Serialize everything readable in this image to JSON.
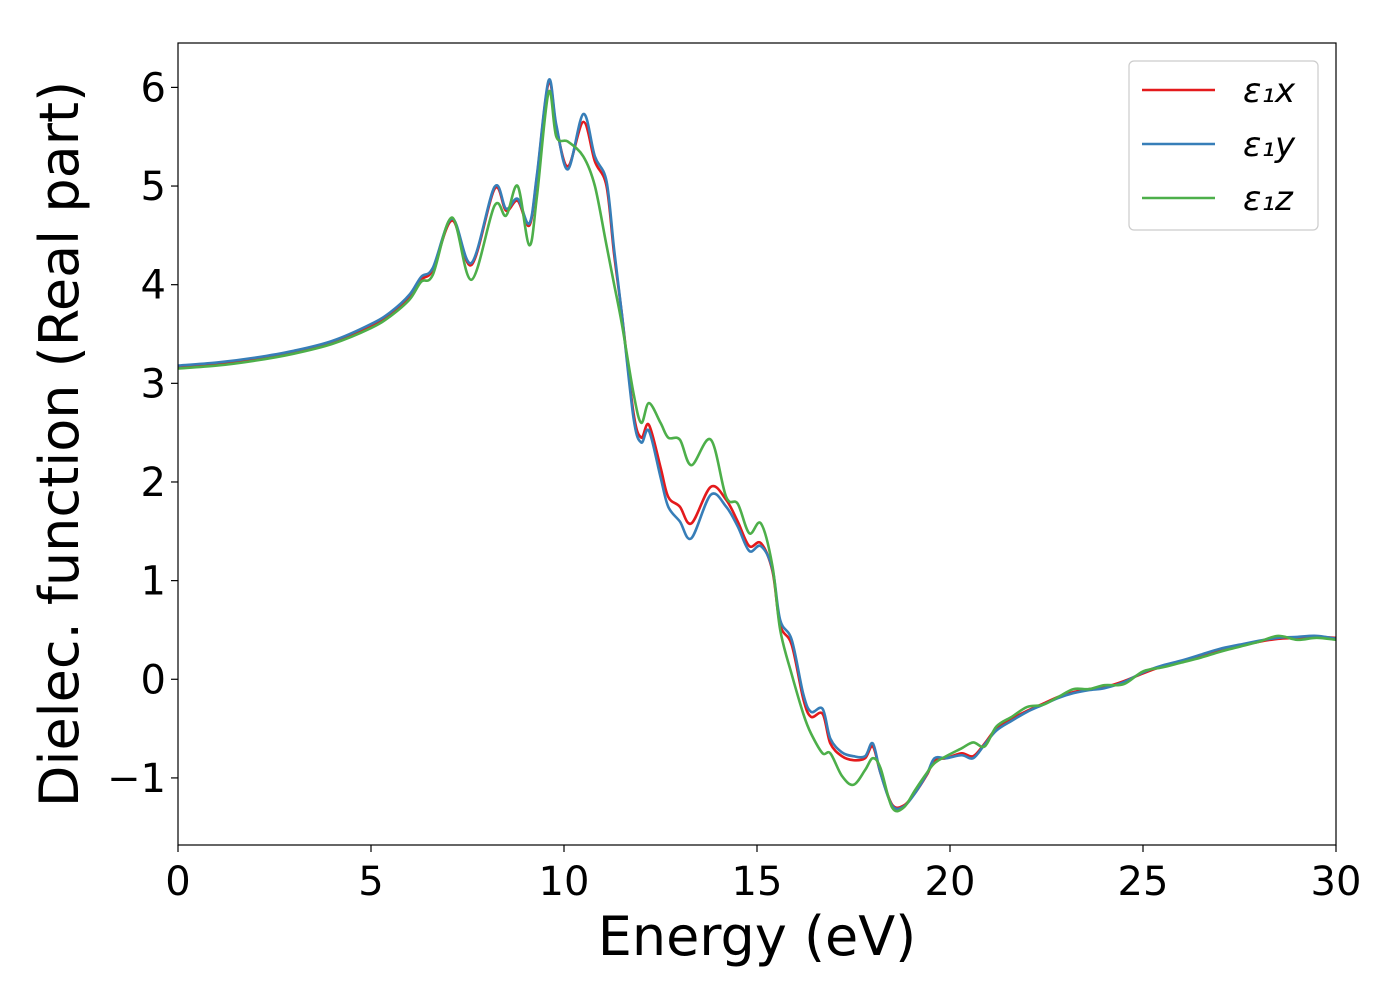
{
  "chart_data": {
    "type": "line",
    "title": "",
    "xlabel": "Energy (eV)",
    "ylabel": "Dielec. function (Real part)",
    "xlim": [
      0,
      30
    ],
    "ylim": [
      -1.68,
      6.45
    ],
    "xticks": [
      0,
      5,
      10,
      15,
      20,
      25,
      30
    ],
    "xtick_labels": [
      "0",
      "5",
      "10",
      "15",
      "20",
      "25",
      "30"
    ],
    "yticks": [
      -1,
      0,
      1,
      2,
      3,
      4,
      5,
      6
    ],
    "ytick_labels": [
      "−1",
      "0",
      "1",
      "2",
      "3",
      "4",
      "5",
      "6"
    ],
    "grid": false,
    "legend_position": "top-right",
    "series": [
      {
        "name": "ε₁x",
        "color": "#e41a1c",
        "x": [
          0,
          1,
          2,
          3,
          4,
          5,
          5.5,
          6,
          6.3,
          6.6,
          7.1,
          7.6,
          8.2,
          8.5,
          8.8,
          9.1,
          9.3,
          9.6,
          9.8,
          10.1,
          10.5,
          10.8,
          11.1,
          11.3,
          11.5,
          11.8,
          12.0,
          12.2,
          12.5,
          12.7,
          13.0,
          13.3,
          13.8,
          14.2,
          14.5,
          14.8,
          15.1,
          15.4,
          15.6,
          15.9,
          16.2,
          16.4,
          16.7,
          16.9,
          17.2,
          17.5,
          17.8,
          18.0,
          18.2,
          18.5,
          18.8,
          19.1,
          19.4,
          19.6,
          19.9,
          20.3,
          20.6,
          20.9,
          21.2,
          21.6,
          22.0,
          22.4,
          22.8,
          23.2,
          23.6,
          24.0,
          24.5,
          25.0,
          25.5,
          26.0,
          26.5,
          27.0,
          27.5,
          28.0,
          28.5,
          29.0,
          29.5,
          30.0
        ],
        "y": [
          3.17,
          3.2,
          3.25,
          3.32,
          3.42,
          3.58,
          3.7,
          3.87,
          4.05,
          4.15,
          4.65,
          4.2,
          4.97,
          4.75,
          4.85,
          4.6,
          5.1,
          6.05,
          5.6,
          5.2,
          5.65,
          5.25,
          5.0,
          4.3,
          3.7,
          2.7,
          2.45,
          2.58,
          2.15,
          1.85,
          1.75,
          1.58,
          1.95,
          1.82,
          1.6,
          1.35,
          1.38,
          1.1,
          0.55,
          0.35,
          -0.2,
          -0.38,
          -0.35,
          -0.65,
          -0.78,
          -0.82,
          -0.8,
          -0.68,
          -0.95,
          -1.27,
          -1.28,
          -1.15,
          -0.97,
          -0.82,
          -0.8,
          -0.75,
          -0.78,
          -0.65,
          -0.5,
          -0.4,
          -0.32,
          -0.25,
          -0.18,
          -0.13,
          -0.1,
          -0.08,
          -0.02,
          0.06,
          0.13,
          0.18,
          0.24,
          0.3,
          0.34,
          0.38,
          0.41,
          0.42,
          0.43,
          0.42
        ]
      },
      {
        "name": "ε₁y",
        "color": "#377eb8",
        "x": [
          0,
          1,
          2,
          3,
          4,
          5,
          5.5,
          6,
          6.3,
          6.6,
          7.1,
          7.6,
          8.2,
          8.5,
          8.8,
          9.1,
          9.3,
          9.6,
          9.8,
          10.1,
          10.5,
          10.8,
          11.1,
          11.3,
          11.5,
          11.8,
          12.0,
          12.2,
          12.5,
          12.7,
          13.0,
          13.3,
          13.8,
          14.2,
          14.5,
          14.8,
          15.1,
          15.4,
          15.6,
          15.9,
          16.2,
          16.4,
          16.7,
          16.9,
          17.2,
          17.5,
          17.8,
          18.0,
          18.2,
          18.5,
          18.8,
          19.1,
          19.4,
          19.6,
          19.9,
          20.3,
          20.6,
          20.9,
          21.2,
          21.6,
          22.0,
          22.4,
          22.8,
          23.2,
          23.6,
          24.0,
          24.5,
          25.0,
          25.5,
          26.0,
          26.5,
          27.0,
          27.5,
          28.0,
          28.5,
          29.0,
          29.5,
          30.0
        ],
        "y": [
          3.18,
          3.21,
          3.26,
          3.33,
          3.43,
          3.6,
          3.72,
          3.9,
          4.08,
          4.17,
          4.67,
          4.22,
          4.99,
          4.77,
          4.87,
          4.62,
          5.12,
          6.07,
          5.62,
          5.17,
          5.73,
          5.3,
          5.05,
          4.35,
          3.7,
          2.65,
          2.4,
          2.52,
          2.05,
          1.75,
          1.6,
          1.43,
          1.87,
          1.75,
          1.55,
          1.3,
          1.35,
          1.12,
          0.6,
          0.4,
          -0.15,
          -0.33,
          -0.3,
          -0.6,
          -0.74,
          -0.78,
          -0.78,
          -0.65,
          -0.95,
          -1.28,
          -1.29,
          -1.15,
          -0.96,
          -0.8,
          -0.8,
          -0.77,
          -0.8,
          -0.66,
          -0.52,
          -0.42,
          -0.33,
          -0.26,
          -0.19,
          -0.14,
          -0.11,
          -0.09,
          -0.03,
          0.07,
          0.14,
          0.19,
          0.25,
          0.31,
          0.35,
          0.39,
          0.42,
          0.43,
          0.44,
          0.41
        ]
      },
      {
        "name": "ε₁z",
        "color": "#4daf4a",
        "x": [
          0,
          1,
          2,
          3,
          4,
          5,
          5.5,
          6,
          6.3,
          6.6,
          7.1,
          7.6,
          8.2,
          8.5,
          8.8,
          9.1,
          9.3,
          9.6,
          9.8,
          10.1,
          10.5,
          10.8,
          11.1,
          11.3,
          11.5,
          11.8,
          12.0,
          12.2,
          12.5,
          12.7,
          13.0,
          13.3,
          13.8,
          14.2,
          14.5,
          14.8,
          15.1,
          15.4,
          15.6,
          15.9,
          16.2,
          16.4,
          16.7,
          16.9,
          17.2,
          17.5,
          17.8,
          18.0,
          18.2,
          18.5,
          18.8,
          19.1,
          19.4,
          19.6,
          19.9,
          20.3,
          20.6,
          20.9,
          21.2,
          21.6,
          22.0,
          22.4,
          22.8,
          23.2,
          23.6,
          24.0,
          24.5,
          25.0,
          25.5,
          26.0,
          26.5,
          27.0,
          27.5,
          28.0,
          28.5,
          29.0,
          29.5,
          30.0
        ],
        "y": [
          3.15,
          3.18,
          3.23,
          3.3,
          3.4,
          3.56,
          3.68,
          3.85,
          4.03,
          4.1,
          4.68,
          4.05,
          4.8,
          4.7,
          5.0,
          4.4,
          4.9,
          5.95,
          5.5,
          5.45,
          5.3,
          5.0,
          4.4,
          4.0,
          3.6,
          2.9,
          2.6,
          2.8,
          2.6,
          2.45,
          2.43,
          2.17,
          2.43,
          1.85,
          1.78,
          1.48,
          1.58,
          1.15,
          0.5,
          0.05,
          -0.35,
          -0.55,
          -0.75,
          -0.75,
          -0.98,
          -1.07,
          -0.92,
          -0.8,
          -0.9,
          -1.3,
          -1.3,
          -1.12,
          -0.95,
          -0.85,
          -0.78,
          -0.7,
          -0.64,
          -0.68,
          -0.48,
          -0.38,
          -0.28,
          -0.26,
          -0.18,
          -0.1,
          -0.1,
          -0.06,
          -0.05,
          0.08,
          0.12,
          0.17,
          0.22,
          0.28,
          0.33,
          0.38,
          0.44,
          0.4,
          0.42,
          0.4
        ]
      }
    ]
  }
}
